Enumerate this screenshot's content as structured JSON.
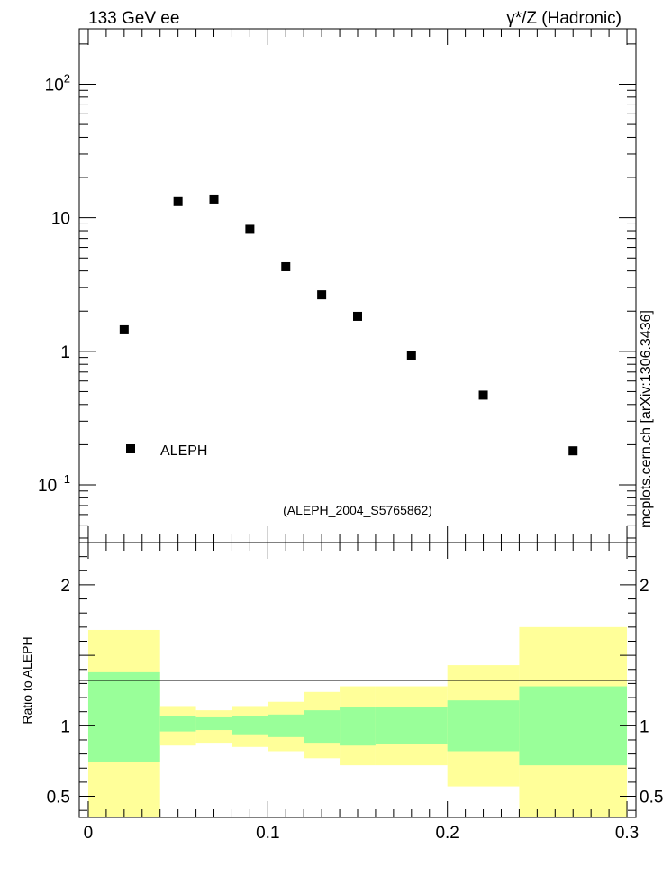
{
  "header": {
    "left": "133 GeV ee",
    "right": "γ*/Z (Hadronic)",
    "side_note": "mcplots.cern.ch [arXiv:1306.3436]",
    "analysis": "(ALEPH_2004_S5765862)"
  },
  "colors": {
    "marker": "#000000",
    "band_outer": "#ffff99",
    "band_inner": "#99ff99",
    "analysis_text": "#999999",
    "side_text": "#808080"
  },
  "chart_data": [
    {
      "type": "scatter",
      "x": [
        0.02,
        0.05,
        0.07,
        0.09,
        0.11,
        0.13,
        0.15,
        0.18,
        0.22,
        0.27
      ],
      "series": [
        {
          "name": "ALEPH",
          "values": [
            1.45,
            13.2,
            13.8,
            8.2,
            4.3,
            2.65,
            1.83,
            0.93,
            0.47,
            0.18
          ]
        }
      ],
      "xlim": [
        -0.005,
        0.305
      ],
      "ylim": [
        0.037,
        260
      ],
      "yscale": "log",
      "y_ticks": [
        {
          "base": "10",
          "exp": "−1",
          "value": 0.1
        },
        {
          "base": "1",
          "exp": "",
          "value": 1
        },
        {
          "base": "10",
          "exp": "",
          "value": 10
        },
        {
          "base": "10",
          "exp": "2",
          "value": 100
        }
      ],
      "legend": {
        "position": "bottom-left"
      }
    },
    {
      "type": "area",
      "ylabel": "Ratio to ALEPH",
      "ylim": [
        0.35,
        2.3
      ],
      "y_ticks": [
        "0.5",
        "1",
        "2"
      ],
      "y_tick_values": [
        0.5,
        1,
        2
      ],
      "x_ticks": [
        "0",
        "0.1",
        "0.2",
        "0.3"
      ],
      "x_tick_values": [
        0,
        0.1,
        0.2,
        0.3
      ],
      "bins": [
        {
          "lo": 0.0,
          "hi": 0.04,
          "inner": [
            0.74,
            1.38
          ],
          "outer": [
            0.35,
            1.68
          ]
        },
        {
          "lo": 0.04,
          "hi": 0.06,
          "inner": [
            0.96,
            1.07
          ],
          "outer": [
            0.86,
            1.14
          ]
        },
        {
          "lo": 0.06,
          "hi": 0.08,
          "inner": [
            0.97,
            1.06
          ],
          "outer": [
            0.88,
            1.11
          ]
        },
        {
          "lo": 0.08,
          "hi": 0.1,
          "inner": [
            0.94,
            1.07
          ],
          "outer": [
            0.85,
            1.14
          ]
        },
        {
          "lo": 0.1,
          "hi": 0.12,
          "inner": [
            0.92,
            1.08
          ],
          "outer": [
            0.82,
            1.17
          ]
        },
        {
          "lo": 0.12,
          "hi": 0.14,
          "inner": [
            0.88,
            1.11
          ],
          "outer": [
            0.77,
            1.24
          ]
        },
        {
          "lo": 0.14,
          "hi": 0.16,
          "inner": [
            0.86,
            1.13
          ],
          "outer": [
            0.72,
            1.28
          ]
        },
        {
          "lo": 0.16,
          "hi": 0.2,
          "inner": [
            0.87,
            1.13
          ],
          "outer": [
            0.72,
            1.28
          ]
        },
        {
          "lo": 0.2,
          "hi": 0.24,
          "inner": [
            0.82,
            1.18
          ],
          "outer": [
            0.57,
            1.43
          ]
        },
        {
          "lo": 0.24,
          "hi": 0.3,
          "inner": [
            0.72,
            1.28
          ],
          "outer": [
            0.35,
            1.7
          ]
        }
      ]
    }
  ]
}
